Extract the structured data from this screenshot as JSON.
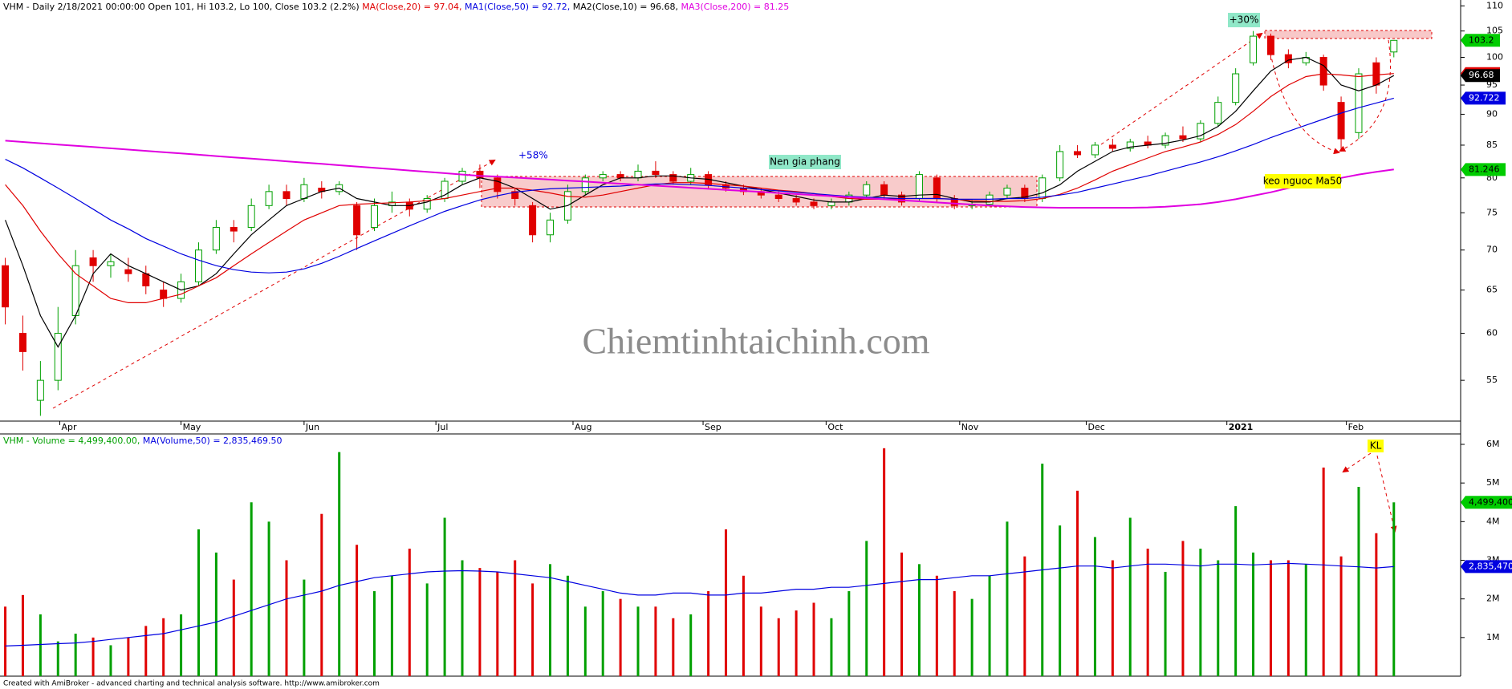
{
  "chart_data": [
    {
      "type": "candlestick",
      "header": [
        {
          "text": "VHM - Daily 2/18/2021 00:00:00 Open 101, Hi 103.2, Lo 100, Close 103.2 (2.2%) ",
          "color": "#000000"
        },
        {
          "text": "MA(Close,20) = 97.04, ",
          "color": "#e00000"
        },
        {
          "text": "MA1(Close,50) = 92.72, ",
          "color": "#0000e0"
        },
        {
          "text": "MA2(Close,10) = 96.68, ",
          "color": "#000000"
        },
        {
          "text": "MA3(Close,200) = 81.25",
          "color": "#e000e0"
        }
      ],
      "open": [
        68,
        60,
        53,
        55,
        62,
        69,
        68,
        67.5,
        67,
        65,
        64,
        66,
        70,
        73,
        73,
        76,
        78,
        77,
        78.5,
        78,
        76,
        73,
        76,
        76.5,
        75.5,
        77,
        79.5,
        81,
        80,
        78,
        76,
        72,
        74,
        78,
        80,
        80.5,
        80,
        81,
        80.5,
        79.5,
        80.5,
        79,
        78.5,
        78,
        77.5,
        77,
        76.5,
        76,
        76.5,
        77.5,
        79,
        77.5,
        77,
        80,
        77,
        76,
        76.2,
        77.5,
        78.5,
        77,
        80,
        84,
        83.5,
        85,
        84.5,
        85.5,
        85,
        86.5,
        86,
        88.5,
        92,
        99,
        104,
        100.5,
        99,
        100,
        92,
        87,
        99,
        101
      ],
      "high": [
        69,
        62,
        57,
        63,
        70,
        70,
        69.5,
        69,
        68,
        66,
        67,
        71,
        74,
        74,
        77,
        79,
        79,
        80,
        79.5,
        79.5,
        76.5,
        77,
        78,
        77,
        77.5,
        80,
        81.5,
        82,
        80.5,
        78.5,
        76.5,
        75,
        79,
        80.5,
        81,
        81,
        82,
        82.5,
        81,
        81.5,
        81,
        79.5,
        79,
        78.5,
        78,
        77.5,
        77,
        77,
        78,
        79.5,
        79.5,
        78,
        81,
        80.5,
        77.5,
        76.8,
        78,
        79,
        79,
        80.5,
        85,
        85,
        85.5,
        86,
        86,
        86.5,
        87,
        88,
        89,
        93,
        98,
        105,
        104.5,
        101.5,
        101,
        100.5,
        93,
        98,
        100,
        103.2
      ],
      "low": [
        61,
        56,
        51.5,
        54,
        61,
        66,
        66.5,
        66,
        64.5,
        63,
        63.5,
        65.5,
        69.5,
        71,
        72.5,
        75.5,
        76,
        76.5,
        77,
        77.5,
        70,
        72.5,
        75,
        74.5,
        75,
        76.5,
        79,
        78.5,
        77,
        76,
        71,
        71,
        73.5,
        77.5,
        79.5,
        79.5,
        79.5,
        80,
        79,
        79,
        78.5,
        78,
        77.5,
        77,
        76.5,
        76,
        75.5,
        75.5,
        76,
        77,
        77,
        76,
        76.5,
        76.5,
        75.5,
        75.5,
        76,
        77,
        76.5,
        76.5,
        79.5,
        83,
        83,
        84,
        84,
        84.5,
        84.5,
        85.5,
        85.5,
        88,
        91.5,
        98.5,
        99.5,
        98,
        98.5,
        94,
        84,
        86,
        93.5,
        100
      ],
      "close": [
        63,
        58,
        55,
        60,
        68,
        68,
        68.5,
        67,
        65.5,
        64,
        66,
        70,
        73,
        72.5,
        76,
        78,
        77,
        79,
        78,
        79,
        72,
        76,
        76.5,
        75.5,
        77,
        79.5,
        81,
        80,
        78,
        77,
        72,
        74,
        78,
        80,
        80.5,
        80,
        81,
        80.5,
        79.5,
        80.5,
        79,
        78.5,
        78,
        77.5,
        77,
        76.5,
        76,
        76.5,
        77.5,
        79,
        77.5,
        76.5,
        80.5,
        77,
        76,
        76.2,
        77.5,
        78.5,
        77,
        80,
        84,
        83.5,
        85,
        84.5,
        85.5,
        85,
        86.5,
        86,
        88.5,
        92,
        97,
        104,
        100.5,
        99,
        100,
        95,
        86,
        97,
        95,
        103.2
      ],
      "up_color": "#00a000",
      "down_color": "#e00000",
      "series": [
        {
          "color": "#000000",
          "values": [
            74,
            68,
            62,
            58.5,
            62,
            67,
            69.5,
            68,
            67,
            66,
            65,
            65.5,
            67,
            69.5,
            72,
            74,
            76,
            77,
            78,
            78.5,
            77,
            76.5,
            76,
            76,
            76.5,
            77.5,
            79,
            80,
            79.5,
            78.5,
            77,
            75.5,
            76,
            77.5,
            79,
            80,
            80,
            80.3,
            80.3,
            80,
            79.8,
            79.3,
            78.8,
            78.3,
            77.8,
            77.3,
            76.8,
            76.5,
            76.5,
            77,
            77.5,
            77.3,
            77.5,
            77.6,
            77,
            76.5,
            76.5,
            77,
            77.2,
            77.8,
            79,
            81,
            82.5,
            84,
            84.7,
            85,
            85.3,
            85.8,
            86.5,
            88,
            90.5,
            94,
            97.5,
            99.5,
            100,
            98.5,
            95,
            94,
            95,
            96.68
          ]
        },
        {
          "color": "#e00000",
          "values": [
            79,
            76,
            72.5,
            69.5,
            67,
            65.5,
            64,
            63.5,
            63.5,
            64,
            64.5,
            65.5,
            66.5,
            68,
            69.5,
            71,
            72.5,
            74,
            75,
            76,
            76.2,
            76.3,
            76.4,
            76.5,
            76.7,
            77,
            77.5,
            78,
            78.5,
            78.5,
            78.2,
            77.8,
            77.3,
            77.2,
            77.5,
            78,
            78.5,
            79,
            79.3,
            79.3,
            79.2,
            79,
            78.8,
            78.5,
            78.2,
            78,
            77.7,
            77.3,
            77,
            76.9,
            76.9,
            77,
            77,
            77,
            76.9,
            76.7,
            76.6,
            76.6,
            76.7,
            77,
            77.6,
            78.5,
            79.7,
            81,
            82,
            83,
            84,
            84.7,
            85.5,
            86.7,
            88.3,
            90.5,
            93,
            95,
            96.5,
            97,
            96.8,
            96.5,
            96.8,
            97.04
          ]
        },
        {
          "color": "#0000e0",
          "values": [
            82.8,
            81.5,
            80,
            78.5,
            77,
            75.5,
            74,
            72.8,
            71.5,
            70.5,
            69.5,
            68.7,
            68,
            67.5,
            67.2,
            67.1,
            67.2,
            67.6,
            68.3,
            69.2,
            70.2,
            71.2,
            72.2,
            73.2,
            74.2,
            75.2,
            76,
            76.8,
            77.4,
            77.9,
            78.2,
            78.4,
            78.5,
            78.6,
            78.7,
            78.8,
            79,
            79.1,
            79.1,
            79,
            78.9,
            78.7,
            78.5,
            78.3,
            78.1,
            77.9,
            77.7,
            77.5,
            77.3,
            77.2,
            77.1,
            77,
            77,
            77,
            76.9,
            76.9,
            76.9,
            77,
            77,
            77.2,
            77.5,
            77.9,
            78.5,
            79.1,
            79.7,
            80.3,
            81,
            81.7,
            82.4,
            83.2,
            84.1,
            85.1,
            86.2,
            87.2,
            88.2,
            89.2,
            90.2,
            91.1,
            91.9,
            92.72
          ]
        },
        {
          "color": "#e000e0",
          "values": [
            85.7,
            85.5,
            85.3,
            85.1,
            84.9,
            84.7,
            84.5,
            84.3,
            84.1,
            83.9,
            83.7,
            83.5,
            83.3,
            83.1,
            82.9,
            82.7,
            82.5,
            82.3,
            82.1,
            81.9,
            81.7,
            81.5,
            81.3,
            81.1,
            80.9,
            80.7,
            80.5,
            80.3,
            80.2,
            80.05,
            79.9,
            79.75,
            79.6,
            79.45,
            79.3,
            79.15,
            79,
            78.85,
            78.7,
            78.55,
            78.4,
            78.25,
            78.1,
            77.95,
            77.8,
            77.65,
            77.5,
            77.35,
            77.2,
            77.05,
            76.9,
            76.75,
            76.6,
            76.45,
            76.3,
            76.15,
            76,
            75.9,
            75.8,
            75.75,
            75.7,
            75.7,
            75.7,
            75.7,
            75.7,
            75.75,
            75.85,
            76,
            76.2,
            76.5,
            76.9,
            77.4,
            77.9,
            78.5,
            79,
            79.5,
            80,
            80.5,
            80.9,
            81.25
          ]
        }
      ],
      "log_scale": true,
      "ylim": [
        51,
        111.2
      ],
      "yticks": [
        55,
        60,
        65,
        70,
        75,
        80,
        85,
        90,
        95,
        100,
        105,
        110
      ],
      "xlim": [
        -0.3,
        82.8
      ],
      "xticks": [
        {
          "value": 3.1,
          "label": "Apr"
        },
        {
          "value": 10,
          "label": "May"
        },
        {
          "value": 17,
          "label": "Jun"
        },
        {
          "value": 24.5,
          "label": "Jul"
        },
        {
          "value": 32.3,
          "label": "Aug"
        },
        {
          "value": 39.7,
          "label": "Sep"
        },
        {
          "value": 46.7,
          "label": "Oct"
        },
        {
          "value": 54.3,
          "label": "Nov"
        },
        {
          "value": 61.5,
          "label": "Dec"
        },
        {
          "value": 69.5,
          "label": "2021"
        },
        {
          "value": 76.3,
          "label": "Feb"
        }
      ],
      "price_labels": [
        {
          "value": 103.2,
          "label": "103.2",
          "color": "#00cc00",
          "text_color": "#000000"
        },
        {
          "value": 97.04,
          "label": "97.04",
          "color": "#e00000",
          "text_color": "#000000"
        },
        {
          "value": 96.68,
          "label": "96.68",
          "color": "#000000",
          "text_color": "#ffffff"
        },
        {
          "value": 92.722,
          "label": "92.722",
          "color": "#0000e0",
          "text_color": "#ffffff"
        },
        {
          "value": 81.246,
          "label": "81.246",
          "color": "#00cc00",
          "text_color": "#000000"
        }
      ],
      "annotations": {
        "gain_1": "+58%",
        "base": "Nen gia phang",
        "gain_2": "+30%",
        "ma50": "keo nguoc Ma50"
      }
    },
    {
      "type": "volume",
      "header": [
        {
          "text": "VHM - Volume = 4,499,400.00, ",
          "color": "#00a000"
        },
        {
          "text": "MA(Volume,50) = 2,835,469.50",
          "color": "#0000e0"
        }
      ],
      "values": [
        1.8,
        2.1,
        1.6,
        0.9,
        1.1,
        1.0,
        0.8,
        1.0,
        1.3,
        1.5,
        1.6,
        3.8,
        3.2,
        2.5,
        4.5,
        4.0,
        3.0,
        2.5,
        4.2,
        5.8,
        3.4,
        2.2,
        2.6,
        3.3,
        2.4,
        4.1,
        3.0,
        2.8,
        2.7,
        3.0,
        2.4,
        2.9,
        2.6,
        1.8,
        2.2,
        2.0,
        1.8,
        1.8,
        1.5,
        1.6,
        2.2,
        3.8,
        2.6,
        1.8,
        1.5,
        1.7,
        1.9,
        1.5,
        2.2,
        3.5,
        5.9,
        3.2,
        2.9,
        2.6,
        2.2,
        2.0,
        2.6,
        4.0,
        3.1,
        5.5,
        3.9,
        4.8,
        3.6,
        3.0,
        4.1,
        3.3,
        2.7,
        3.5,
        3.3,
        3.0,
        4.4,
        3.2,
        3.0,
        3.0,
        2.9,
        5.4,
        3.1,
        4.9,
        3.7,
        4.4994
      ],
      "ma": {
        "color": "#0000e0",
        "values": [
          0.78,
          0.8,
          0.82,
          0.84,
          0.86,
          0.9,
          0.95,
          1.0,
          1.05,
          1.1,
          1.2,
          1.3,
          1.4,
          1.55,
          1.7,
          1.85,
          2.0,
          2.1,
          2.2,
          2.35,
          2.45,
          2.55,
          2.6,
          2.65,
          2.7,
          2.72,
          2.73,
          2.72,
          2.7,
          2.65,
          2.6,
          2.55,
          2.45,
          2.35,
          2.25,
          2.15,
          2.1,
          2.1,
          2.15,
          2.15,
          2.1,
          2.1,
          2.15,
          2.15,
          2.2,
          2.25,
          2.25,
          2.3,
          2.3,
          2.35,
          2.4,
          2.45,
          2.5,
          2.5,
          2.55,
          2.6,
          2.6,
          2.65,
          2.7,
          2.75,
          2.8,
          2.85,
          2.85,
          2.8,
          2.85,
          2.9,
          2.9,
          2.88,
          2.85,
          2.9,
          2.9,
          2.88,
          2.9,
          2.92,
          2.9,
          2.88,
          2.85,
          2.83,
          2.8,
          2.83547
        ]
      },
      "ylim": [
        0,
        6.27
      ],
      "yticks": [
        {
          "value": 1,
          "label": "1M"
        },
        {
          "value": 2,
          "label": "2M"
        },
        {
          "value": 3,
          "label": "3M"
        },
        {
          "value": 4,
          "label": "4M"
        },
        {
          "value": 5,
          "label": "5M"
        },
        {
          "value": 6,
          "label": "6M"
        }
      ],
      "xlim": [
        -0.3,
        82.8
      ],
      "value_labels_right": [
        {
          "value": 4.4994,
          "label": "4,499,400",
          "color": "#00cc00",
          "text_color": "#000000"
        },
        {
          "value": 2.83547,
          "label": "2,835,470",
          "color": "#0000e0",
          "text_color": "#ffffff"
        }
      ],
      "annotations": {
        "note": "KL"
      }
    }
  ],
  "watermark": "Chiemtinhtaichinh.com",
  "footer": "Created with AmiBroker - advanced charting and technical analysis software. http://www.amibroker.com"
}
